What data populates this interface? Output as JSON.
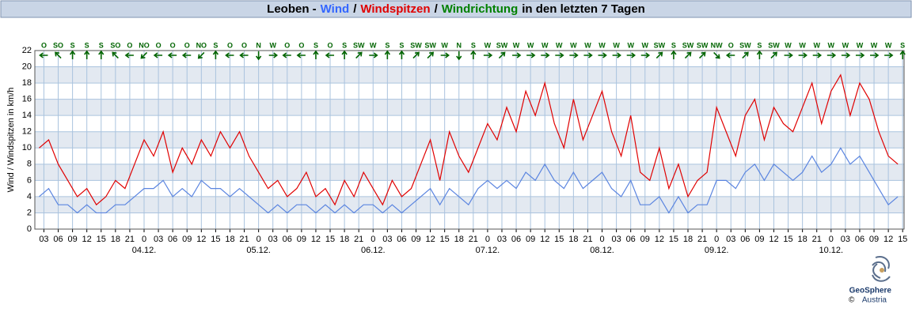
{
  "chart_data": {
    "type": "line",
    "title_parts": [
      {
        "text": "Leoben -",
        "color": "#000000"
      },
      {
        "text": "Wind",
        "color": "#3366ff"
      },
      {
        "text": "/",
        "color": "#000000"
      },
      {
        "text": "Windspitzen",
        "color": "#e00000"
      },
      {
        "text": "/",
        "color": "#000000"
      },
      {
        "text": "Windrichtung",
        "color": "#008000"
      },
      {
        "text": "in den letzten 7 Tagen",
        "color": "#000000"
      }
    ],
    "y_label": "Wind / Windspitzen in km/h",
    "xlim": [
      1.1,
      183.3
    ],
    "ylim": [
      0,
      22
    ],
    "yticks": [
      0,
      2,
      4,
      6,
      8,
      10,
      12,
      14,
      16,
      18,
      20,
      22
    ],
    "xticks": [
      {
        "value": 3,
        "label": "03"
      },
      {
        "value": 6,
        "label": "06"
      },
      {
        "value": 9,
        "label": "09"
      },
      12,
      15,
      18,
      21,
      {
        "value": 24,
        "label": "0"
      },
      {
        "value": 27,
        "label": "03"
      },
      {
        "value": 30,
        "label": "06"
      },
      {
        "value": 33,
        "label": "09"
      },
      {
        "value": 36,
        "label": "12"
      },
      {
        "value": 39,
        "label": "15"
      },
      {
        "value": 42,
        "label": "18"
      },
      {
        "value": 45,
        "label": "21"
      },
      {
        "value": 48,
        "label": "0"
      },
      {
        "value": 51,
        "label": "03"
      },
      {
        "value": 54,
        "label": "06"
      },
      {
        "value": 57,
        "label": "09"
      },
      {
        "value": 60,
        "label": "12"
      },
      {
        "value": 63,
        "label": "15"
      },
      {
        "value": 66,
        "label": "18"
      },
      {
        "value": 69,
        "label": "21"
      },
      {
        "value": 72,
        "label": "0"
      },
      {
        "value": 75,
        "label": "03"
      },
      {
        "value": 78,
        "label": "06"
      },
      {
        "value": 81,
        "label": "09"
      },
      {
        "value": 84,
        "label": "12"
      },
      {
        "value": 87,
        "label": "15"
      },
      {
        "value": 90,
        "label": "18"
      },
      {
        "value": 93,
        "label": "21"
      },
      {
        "value": 96,
        "label": "0"
      },
      {
        "value": 99,
        "label": "03"
      },
      {
        "value": 102,
        "label": "06"
      },
      {
        "value": 105,
        "label": "09"
      },
      {
        "value": 108,
        "label": "12"
      },
      {
        "value": 111,
        "label": "15"
      },
      {
        "value": 114,
        "label": "18"
      },
      {
        "value": 117,
        "label": "21"
      },
      {
        "value": 120,
        "label": "0"
      },
      {
        "value": 123,
        "label": "03"
      },
      {
        "value": 126,
        "label": "06"
      },
      {
        "value": 129,
        "label": "09"
      },
      {
        "value": 132,
        "label": "12"
      },
      {
        "value": 135,
        "label": "15"
      },
      {
        "value": 138,
        "label": "18"
      },
      {
        "value": 141,
        "label": "21"
      },
      {
        "value": 144,
        "label": "0"
      },
      {
        "value": 147,
        "label": "03"
      },
      {
        "value": 150,
        "label": "06"
      },
      {
        "value": 153,
        "label": "09"
      },
      {
        "value": 156,
        "label": "12"
      },
      {
        "value": 159,
        "label": "15"
      },
      {
        "value": 162,
        "label": "18"
      },
      {
        "value": 165,
        "label": "21"
      },
      {
        "value": 168,
        "label": "0"
      },
      {
        "value": 171,
        "label": "03"
      },
      {
        "value": 174,
        "label": "06"
      },
      {
        "value": 177,
        "label": "09"
      },
      {
        "value": 180,
        "label": "12"
      },
      {
        "value": 183,
        "label": "15"
      }
    ],
    "date_labels": [
      {
        "value": 24,
        "label": "04.12."
      },
      {
        "value": 48,
        "label": "05.12."
      },
      {
        "value": 72,
        "label": "06.12."
      },
      {
        "value": 96,
        "label": "07.12."
      },
      {
        "value": 120,
        "label": "08.12."
      },
      {
        "value": 144,
        "label": "09.12."
      },
      {
        "value": 168,
        "label": "10.12."
      }
    ],
    "grid": true,
    "x": [
      2,
      4,
      6,
      8,
      10,
      12,
      14,
      16,
      18,
      20,
      22,
      24,
      26,
      28,
      30,
      32,
      34,
      36,
      38,
      40,
      42,
      44,
      46,
      48,
      50,
      52,
      54,
      56,
      58,
      60,
      62,
      64,
      66,
      68,
      70,
      72,
      74,
      76,
      78,
      80,
      82,
      84,
      86,
      88,
      90,
      92,
      94,
      96,
      98,
      100,
      102,
      104,
      106,
      108,
      110,
      112,
      114,
      116,
      118,
      120,
      122,
      124,
      126,
      128,
      130,
      132,
      134,
      136,
      138,
      140,
      142,
      144,
      146,
      148,
      150,
      152,
      154,
      156,
      158,
      160,
      162,
      164,
      166,
      168,
      170,
      172,
      174,
      176,
      178,
      180,
      182
    ],
    "series": [
      {
        "name": "Windspitzen",
        "color": "#e00000",
        "values": [
          10,
          11,
          8,
          6,
          4,
          5,
          3,
          4,
          6,
          5,
          8,
          11,
          9,
          12,
          7,
          10,
          8,
          11,
          9,
          12,
          10,
          12,
          9,
          7,
          5,
          6,
          4,
          5,
          7,
          4,
          5,
          3,
          6,
          4,
          7,
          5,
          3,
          6,
          4,
          5,
          8,
          11,
          6,
          12,
          9,
          7,
          10,
          13,
          11,
          15,
          12,
          17,
          14,
          18,
          13,
          10,
          16,
          11,
          14,
          17,
          12,
          9,
          14,
          7,
          6,
          10,
          5,
          8,
          4,
          6,
          7,
          15,
          12,
          9,
          14,
          16,
          11,
          15,
          13,
          12,
          15,
          18,
          13,
          17,
          19,
          14,
          18,
          16,
          12,
          9,
          8
        ]
      },
      {
        "name": "Wind",
        "color": "#5b85e0",
        "values": [
          4,
          5,
          3,
          3,
          2,
          3,
          2,
          2,
          3,
          3,
          4,
          5,
          5,
          6,
          4,
          5,
          4,
          6,
          5,
          5,
          4,
          5,
          4,
          3,
          2,
          3,
          2,
          3,
          3,
          2,
          3,
          2,
          3,
          2,
          3,
          3,
          2,
          3,
          2,
          3,
          4,
          5,
          3,
          5,
          4,
          3,
          5,
          6,
          5,
          6,
          5,
          7,
          6,
          8,
          6,
          5,
          7,
          5,
          6,
          7,
          5,
          4,
          6,
          3,
          3,
          4,
          2,
          4,
          2,
          3,
          3,
          6,
          6,
          5,
          7,
          8,
          6,
          8,
          7,
          6,
          7,
          9,
          7,
          8,
          10,
          8,
          9,
          7,
          5,
          3,
          4
        ]
      }
    ],
    "directions": {
      "color": "#006400",
      "x": [
        3,
        6,
        9,
        12,
        15,
        18,
        21,
        24,
        27,
        30,
        33,
        36,
        39,
        42,
        45,
        48,
        51,
        54,
        57,
        60,
        63,
        66,
        69,
        72,
        75,
        78,
        81,
        84,
        87,
        90,
        93,
        96,
        99,
        102,
        105,
        108,
        111,
        114,
        117,
        120,
        123,
        126,
        129,
        132,
        135,
        138,
        141,
        144,
        147,
        150,
        153,
        156,
        159,
        162,
        165,
        168,
        171,
        174,
        177,
        180,
        183
      ],
      "labels": [
        "O",
        "SO",
        "S",
        "S",
        "S",
        "SO",
        "O",
        "NO",
        "O",
        "O",
        "O",
        "NO",
        "S",
        "O",
        "O",
        "N",
        "W",
        "O",
        "O",
        "S",
        "O",
        "S",
        "SW",
        "W",
        "S",
        "S",
        "SW",
        "SW",
        "W",
        "N",
        "S",
        "W",
        "SW",
        "W",
        "W",
        "W",
        "W",
        "W",
        "W",
        "W",
        "W",
        "W",
        "W",
        "SW",
        "S",
        "SW",
        "SW",
        "NW",
        "O",
        "SW",
        "S",
        "SW",
        "W",
        "W",
        "W",
        "W",
        "W",
        "W",
        "W",
        "W",
        "S"
      ],
      "degrees": [
        90,
        135,
        180,
        180,
        180,
        135,
        90,
        45,
        90,
        90,
        90,
        45,
        180,
        90,
        90,
        0,
        270,
        90,
        90,
        180,
        90,
        180,
        225,
        270,
        180,
        180,
        225,
        225,
        270,
        0,
        180,
        270,
        225,
        270,
        270,
        270,
        270,
        270,
        270,
        270,
        270,
        270,
        270,
        225,
        180,
        225,
        225,
        315,
        90,
        225,
        180,
        225,
        270,
        270,
        270,
        270,
        270,
        270,
        270,
        270,
        180
      ]
    },
    "logo": {
      "name": "GeoSphere",
      "country": "Austria",
      "copyright": "©"
    }
  }
}
